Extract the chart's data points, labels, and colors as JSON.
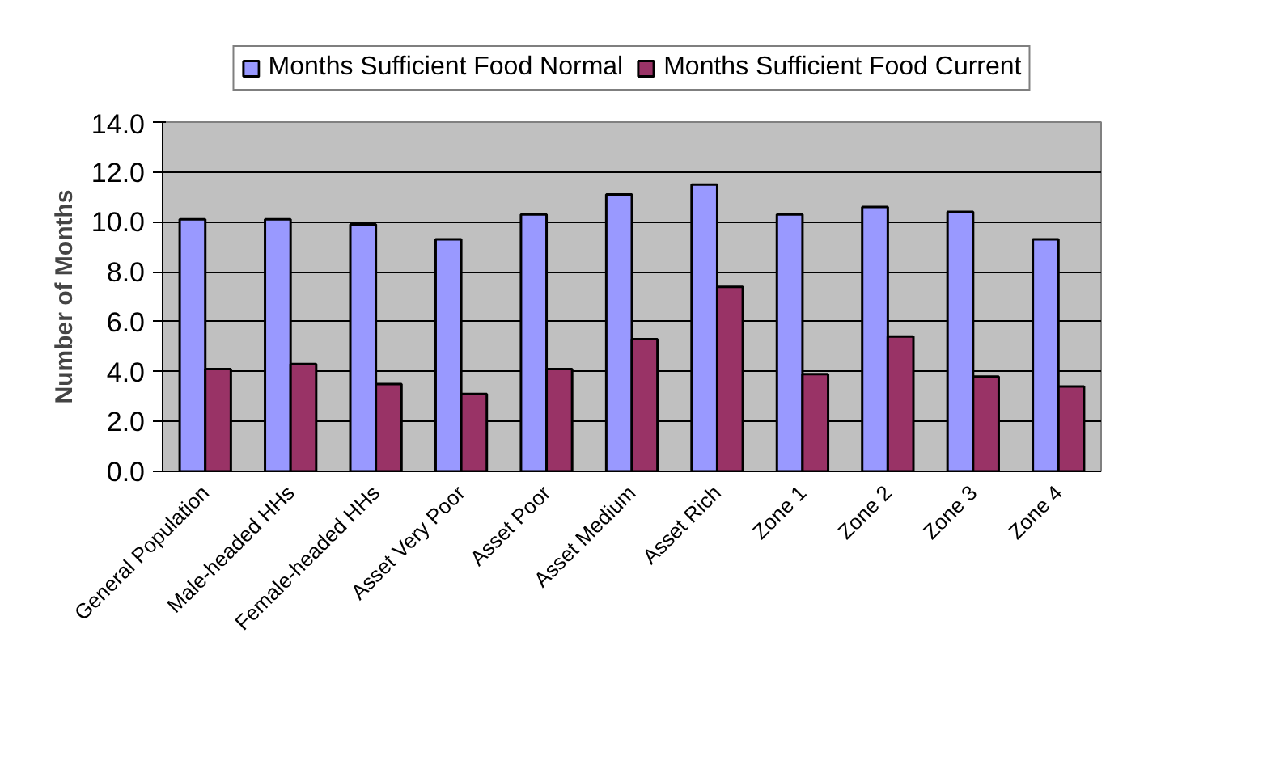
{
  "chart_data": {
    "type": "bar",
    "ylabel": "Number of Months",
    "categories": [
      "General Population",
      "Male-headed HHs",
      "Female-headed HHs",
      "Asset Very Poor",
      "Asset Poor",
      "Asset Medium",
      "Asset Rich",
      "Zone 1",
      "Zone 2",
      "Zone 3",
      "Zone 4"
    ],
    "series": [
      {
        "name": "Months Sufficient Food Normal",
        "color": "#9999ff",
        "values": [
          10.1,
          10.1,
          9.9,
          9.3,
          10.3,
          11.1,
          11.5,
          10.3,
          10.6,
          10.4,
          9.3
        ]
      },
      {
        "name": "Months Sufficient Food Current",
        "color": "#993366",
        "values": [
          4.1,
          4.3,
          3.5,
          3.1,
          4.1,
          5.3,
          7.4,
          3.9,
          5.4,
          3.8,
          3.4
        ]
      }
    ],
    "ylim": [
      0,
      14
    ],
    "yticks": [
      {
        "value": 0,
        "label": "0.0"
      },
      {
        "value": 2,
        "label": "2.0"
      },
      {
        "value": 4,
        "label": "4.0"
      },
      {
        "value": 6,
        "label": "6.0"
      },
      {
        "value": 8,
        "label": "8.0"
      },
      {
        "value": 10,
        "label": "10.0"
      },
      {
        "value": 12,
        "label": "12.0"
      },
      {
        "value": 14,
        "label": "14.0"
      }
    ],
    "grid": "y",
    "legend": "top"
  }
}
